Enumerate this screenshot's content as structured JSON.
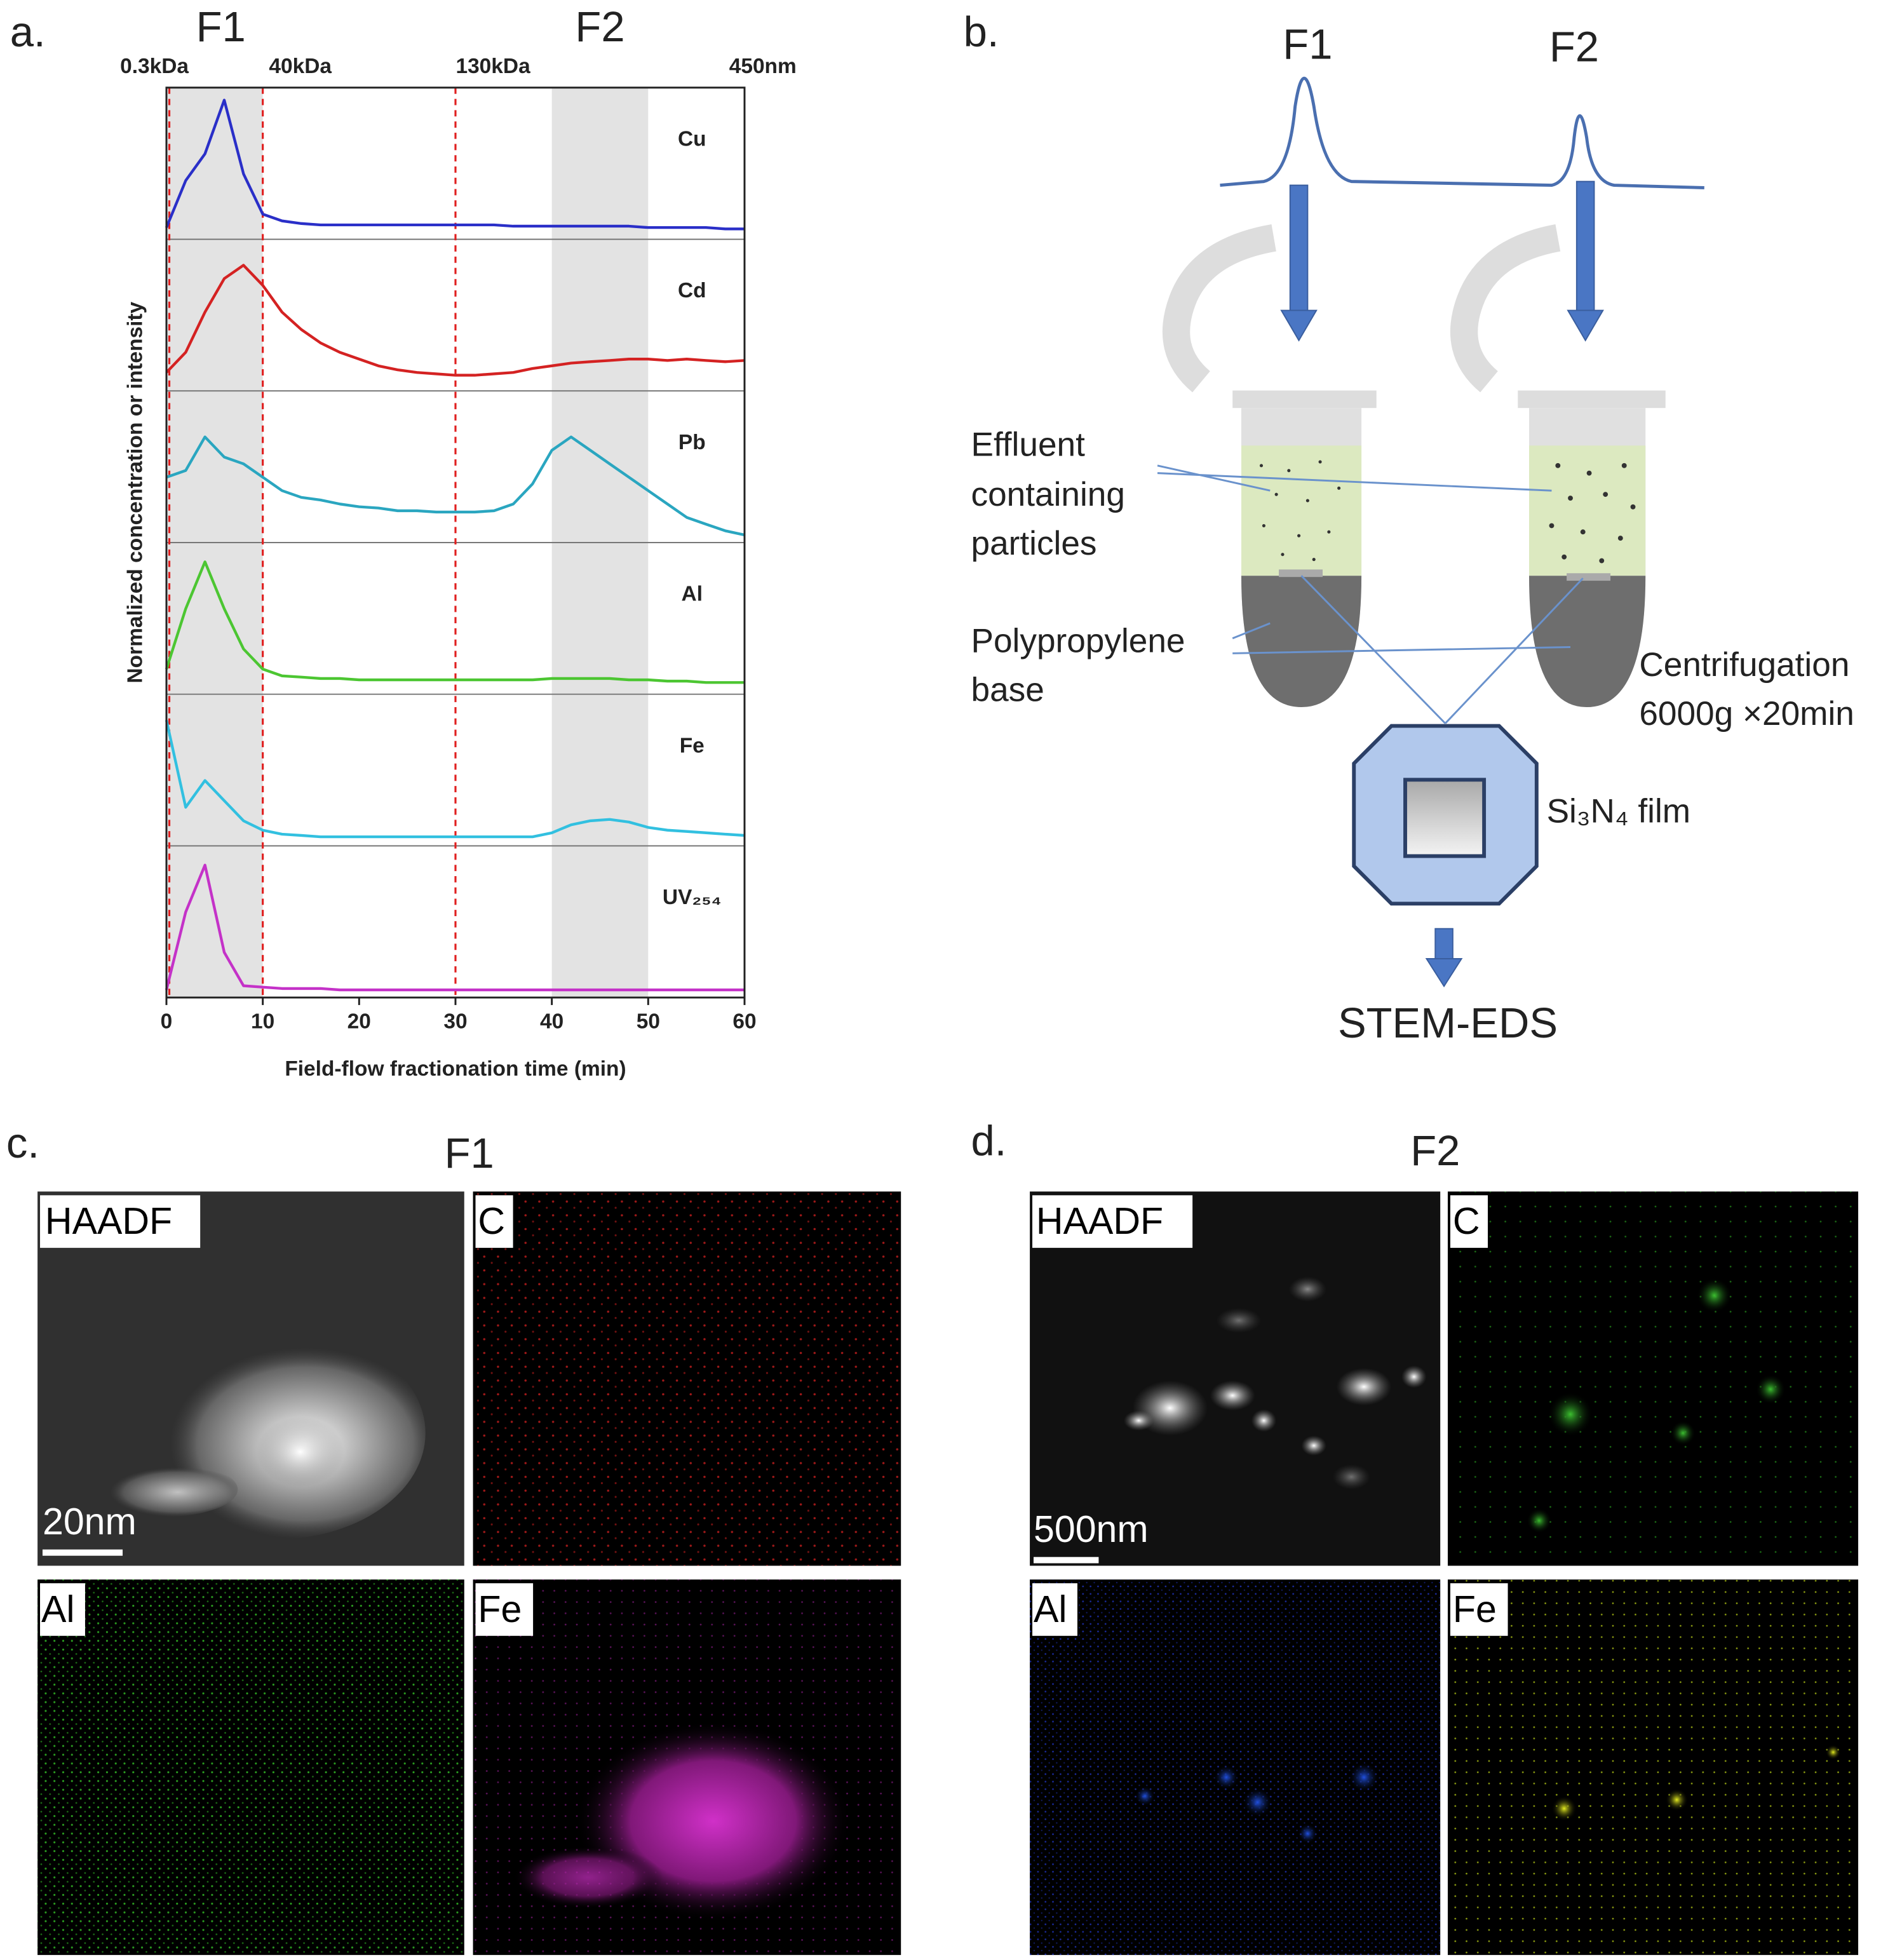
{
  "chart_data": {
    "type": "line",
    "panel_label": "a.",
    "x_label": "Field-flow fractionation time (min)",
    "y_label": "Normalized concentration or intensity",
    "xlim": [
      0,
      60
    ],
    "xticks": [
      0,
      10,
      20,
      30,
      40,
      50,
      60
    ],
    "ylim": [
      0,
      1
    ],
    "fractions": [
      {
        "label": "F1",
        "range": [
          0,
          10
        ]
      },
      {
        "label": "F2",
        "range": [
          40,
          50
        ]
      }
    ],
    "markers": [
      {
        "x": 0.3,
        "label": "0.3kDa",
        "line": true
      },
      {
        "x": 10,
        "label": "40kDa",
        "line": true
      },
      {
        "x": 30,
        "label": "130kDa",
        "line": true
      },
      {
        "x": 58,
        "label": "450nm",
        "line": false
      }
    ],
    "x": [
      0,
      2,
      4,
      6,
      8,
      10,
      12,
      14,
      16,
      18,
      20,
      22,
      24,
      26,
      28,
      30,
      32,
      34,
      36,
      38,
      40,
      42,
      44,
      46,
      48,
      50,
      52,
      54,
      56,
      58,
      60
    ],
    "series": [
      {
        "name": "Cu",
        "color": "#2a2fc8",
        "values": [
          0.05,
          0.4,
          0.6,
          1.0,
          0.45,
          0.15,
          0.1,
          0.08,
          0.07,
          0.07,
          0.07,
          0.07,
          0.07,
          0.07,
          0.07,
          0.07,
          0.07,
          0.07,
          0.06,
          0.06,
          0.06,
          0.06,
          0.06,
          0.06,
          0.06,
          0.05,
          0.05,
          0.05,
          0.05,
          0.04,
          0.04
        ]
      },
      {
        "name": "Cd",
        "color": "#d42222",
        "values": [
          0.1,
          0.25,
          0.55,
          0.8,
          0.9,
          0.75,
          0.55,
          0.42,
          0.32,
          0.25,
          0.2,
          0.15,
          0.12,
          0.1,
          0.09,
          0.08,
          0.08,
          0.09,
          0.1,
          0.13,
          0.15,
          0.17,
          0.18,
          0.19,
          0.2,
          0.2,
          0.19,
          0.2,
          0.19,
          0.18,
          0.19
        ]
      },
      {
        "name": "Pb",
        "color": "#2aa6c0",
        "values": [
          0.45,
          0.5,
          0.75,
          0.6,
          0.55,
          0.45,
          0.35,
          0.3,
          0.28,
          0.25,
          0.23,
          0.22,
          0.2,
          0.2,
          0.19,
          0.19,
          0.19,
          0.2,
          0.25,
          0.4,
          0.65,
          0.75,
          0.65,
          0.55,
          0.45,
          0.35,
          0.25,
          0.15,
          0.1,
          0.05,
          0.02
        ]
      },
      {
        "name": "Al",
        "color": "#4cc632",
        "values": [
          0.15,
          0.6,
          0.95,
          0.6,
          0.3,
          0.15,
          0.1,
          0.09,
          0.08,
          0.08,
          0.07,
          0.07,
          0.07,
          0.07,
          0.07,
          0.07,
          0.07,
          0.07,
          0.07,
          0.07,
          0.08,
          0.08,
          0.08,
          0.08,
          0.07,
          0.07,
          0.06,
          0.06,
          0.05,
          0.05,
          0.05
        ]
      },
      {
        "name": "Fe",
        "color": "#32c0e0",
        "values": [
          0.9,
          0.25,
          0.45,
          0.3,
          0.15,
          0.08,
          0.05,
          0.04,
          0.03,
          0.03,
          0.03,
          0.03,
          0.03,
          0.03,
          0.03,
          0.03,
          0.03,
          0.03,
          0.03,
          0.03,
          0.06,
          0.12,
          0.15,
          0.16,
          0.14,
          0.1,
          0.08,
          0.07,
          0.06,
          0.05,
          0.04
        ]
      },
      {
        "name": "UV₂₅₄",
        "color": "#c432c8",
        "values": [
          0.02,
          0.6,
          0.95,
          0.3,
          0.05,
          0.04,
          0.03,
          0.03,
          0.03,
          0.02,
          0.02,
          0.02,
          0.02,
          0.02,
          0.02,
          0.02,
          0.02,
          0.02,
          0.02,
          0.02,
          0.02,
          0.02,
          0.02,
          0.02,
          0.02,
          0.02,
          0.02,
          0.02,
          0.02,
          0.02,
          0.02
        ]
      }
    ]
  },
  "diagram": {
    "panel_label": "b.",
    "fractions": [
      "F1",
      "F2"
    ],
    "effluent_label": [
      "Effluent",
      "containing",
      "particles"
    ],
    "base_label": [
      "Polypropylene",
      "base"
    ],
    "centrifugation_label": [
      "Centrifugation",
      "6000g ×20min"
    ],
    "film_label": "Si₃N₄ film",
    "technique_label": "STEM-EDS"
  },
  "panel_c": {
    "panel_label": "c.",
    "fraction": "F1",
    "images": [
      "HAADF",
      "C",
      "Al",
      "Fe"
    ],
    "scale_bar": "20nm"
  },
  "panel_d": {
    "panel_label": "d.",
    "fraction": "F2",
    "images": [
      "HAADF",
      "C",
      "Al",
      "Fe"
    ],
    "scale_bar": "500nm"
  }
}
